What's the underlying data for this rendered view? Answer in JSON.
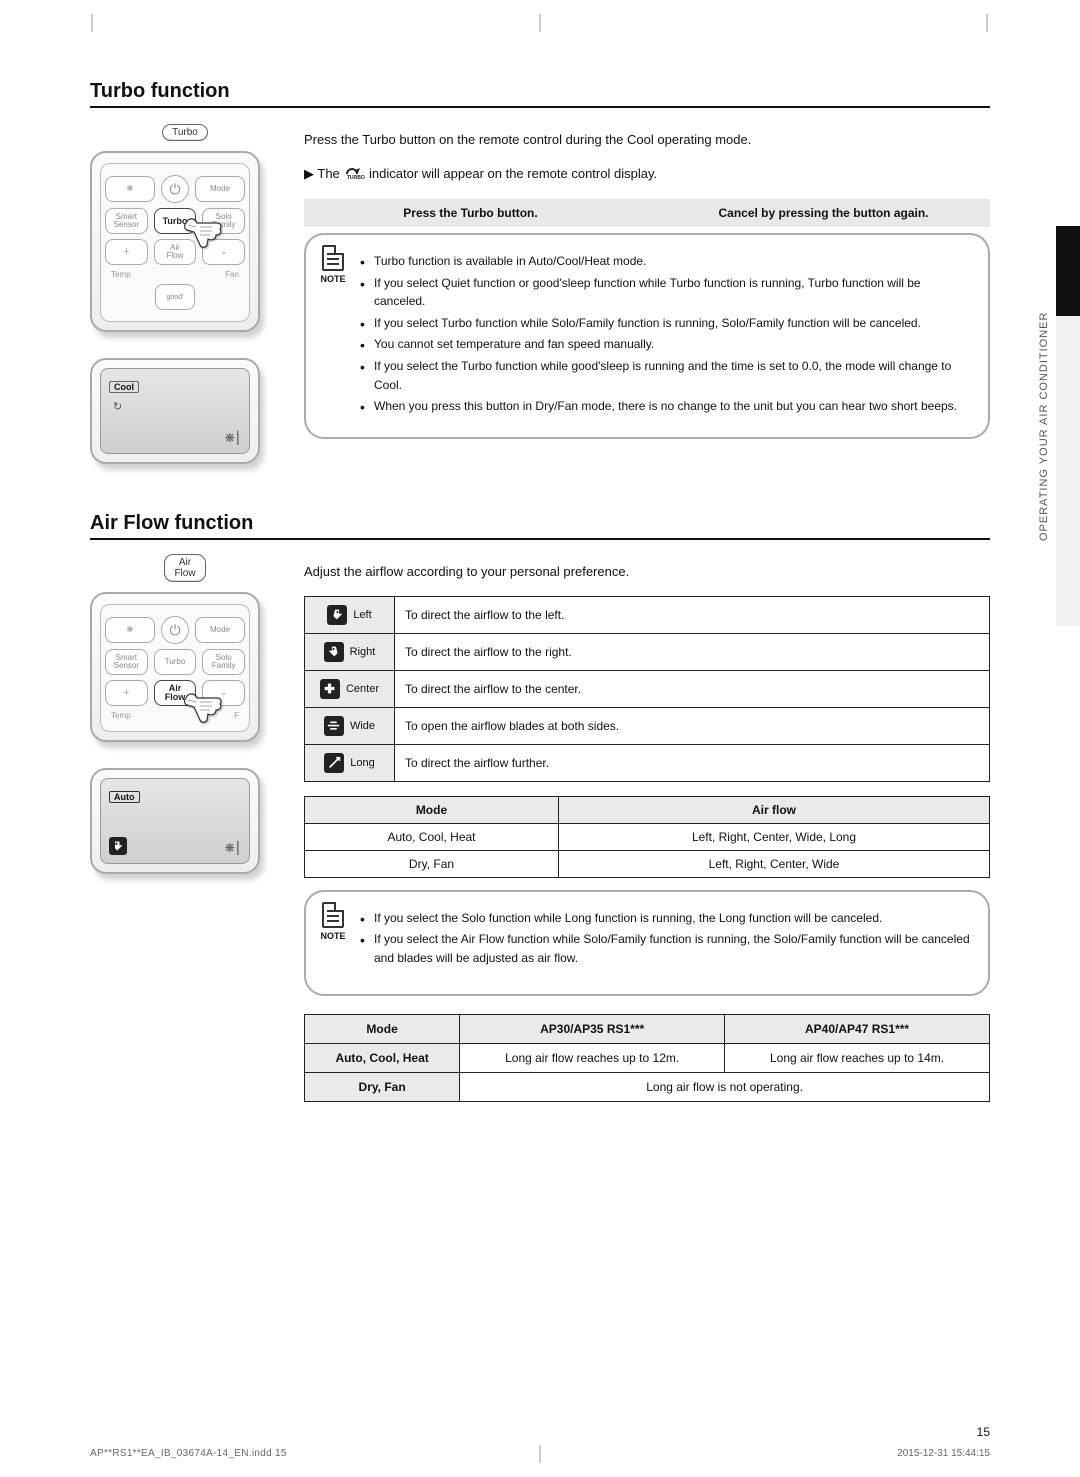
{
  "meta": {
    "page_number": "15",
    "footer_left": "AP**RS1**EA_IB_03674A-14_EN.indd   15",
    "footer_right": "2015-12-31   15:44:15",
    "side_label_text": "OPERATING YOUR AIR CONDITIONER"
  },
  "turbo": {
    "title": "Turbo function",
    "lead_before_icon": "Press the Turbo button on the remote control during the Cool operating mode.",
    "indicator_prefix": "▶ The ",
    "indicator_suffix": " indicator will appear on the remote control display.",
    "grey_cell_left": "Press the Turbo  button.",
    "grey_cell_right": "Cancel by pressing the  button again.",
    "notes": [
      "Turbo function is available in Auto/Cool/Heat mode.",
      "If you select Quiet function or good'sleep function while Turbo function is running, Turbo function will be canceled.",
      "If you select Turbo function while Solo/Family function is running, Solo/Family function will be canceled.",
      "You cannot set temperature and fan speed manually.",
      "If you select the Turbo function while good'sleep is running and the time is set to 0.0, the mode will change to Cool.",
      "When you press this button in Dry/Fan mode, there is no change to the unit but you can hear two short beeps."
    ],
    "remote_buttons": {
      "pill_label": "Turbo",
      "autoclean_icon": "✻",
      "power": "⏻",
      "mode": "Mode",
      "smart_sensor_l1": "Smart",
      "smart_sensor_l2": "Sensor",
      "turbo": "Turbo",
      "solo_family_l1": "Solo",
      "solo_family_l2": "Family",
      "plus": "＋",
      "air_flow_l1": "Air",
      "air_flow_l2": "Flow",
      "down": "⌄",
      "temp": "Temp",
      "fan": "Fan",
      "goodsleep": "good'"
    },
    "display": {
      "tag": "Cool",
      "turbo_glyph": "↻",
      "fan_glyph": "❋⎮"
    }
  },
  "airflow": {
    "title": "Air Flow function",
    "lead": "Adjust the airflow according to your personal preference.",
    "pill_label": "Air Flow",
    "table": [
      {
        "label": "Left",
        "desc": "To direct the airflow to the left."
      },
      {
        "label": "Right",
        "desc": "To direct the airflow to the right."
      },
      {
        "label": "Center",
        "desc": "To direct the airflow to the center."
      },
      {
        "label": "Wide",
        "desc": "To open the airflow blades at both sides."
      },
      {
        "label": "Long",
        "desc": "To direct the airflow further."
      }
    ],
    "mode_table": {
      "headers": [
        "Mode",
        "Air flow"
      ],
      "rows": [
        [
          "Auto, Cool, Heat",
          "Left, Right, Center, Wide, Long"
        ],
        [
          "Dry, Fan",
          "Left, Right, Center, Wide"
        ]
      ]
    },
    "notes": [
      "If you select the Solo function while Long function is running, the Long function will be canceled.",
      "If you select the Air Flow function while Solo/Family function is running, the Solo/Family function will be canceled and blades will be adjusted as air flow."
    ],
    "mode_table2": {
      "headers": [
        "Mode",
        "AP30/AP35 RS1***",
        "AP40/AP47 RS1***"
      ],
      "rows": [
        {
          "label": "Auto, Cool, Heat",
          "cells": [
            "Long air flow reaches up to 12m.",
            "Long air flow reaches up to 14m."
          ]
        },
        {
          "label": "Dry, Fan",
          "cells": [
            "Long air flow is not operating.",
            ""
          ]
        }
      ],
      "dry_fan_colspan_note": true
    },
    "display": {
      "tag": "Auto",
      "fan_glyph": "❋⎮"
    },
    "remote_buttons": {
      "autoclean_icon": "✻",
      "power": "⏻",
      "mode": "Mode",
      "smart_sensor_l1": "Smart",
      "smart_sensor_l2": "Sensor",
      "turbo": "Turbo",
      "solo_family_l1": "Solo",
      "solo_family_l2": "Family",
      "plus": "＋",
      "air_flow_l1": "Air",
      "air_flow_l2": "Flow",
      "down": "⌄",
      "temp": "Temp",
      "fan": "F"
    }
  },
  "icons": {
    "note_label": "NOTE",
    "turbo_small": "TURBO",
    "center_label": "CENTER",
    "wide_label": "WIDE",
    "long_label": "LONG"
  },
  "colors": {
    "border": "#222222",
    "grey_bg": "#e8e8e8",
    "icon_cell_bg": "#eaeaea",
    "side_tab": "#111111",
    "note_border": "#aaaaaa"
  }
}
